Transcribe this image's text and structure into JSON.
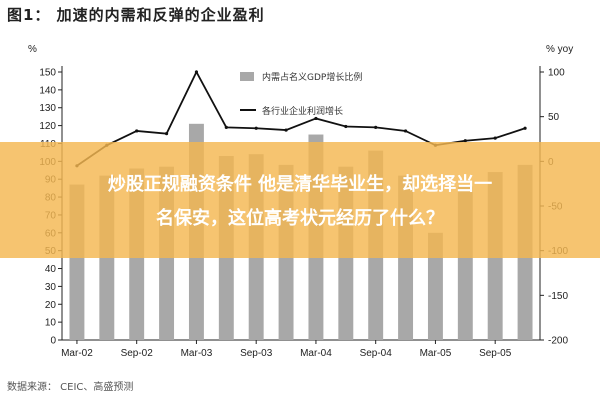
{
  "title": "图1： 加速的内需和反弹的企业盈利",
  "source": "数据来源： CEIC、高盛预测",
  "overlay": {
    "line1": "炒股正规融资条件 他是清华毕业生，却选择当一",
    "line2": "名保安，这位高考状元经历了什么？"
  },
  "chart_data": {
    "type": "bar",
    "left_axis_label": "%",
    "right_axis_label": "% yoy",
    "left_ylim": [
      0,
      150
    ],
    "left_ticks": [
      0,
      10,
      20,
      30,
      40,
      50,
      60,
      70,
      80,
      90,
      100,
      110,
      120,
      130,
      140,
      150
    ],
    "right_ylim": [
      -200,
      100
    ],
    "right_ticks": [
      -200,
      -150,
      -100,
      -50,
      0,
      50,
      100
    ],
    "x_tick_labels": [
      "Mar-02",
      "Sep-02",
      "Mar-03",
      "Sep-03",
      "Mar-04",
      "Sep-04",
      "Mar-05",
      "Sep-05"
    ],
    "grid": false,
    "legend_position": "top-center",
    "categories": [
      "Mar-02",
      "Jun-02",
      "Sep-02",
      "Dec-02",
      "Mar-03",
      "Jun-03",
      "Sep-03",
      "Dec-03",
      "Mar-04",
      "Jun-04",
      "Sep-04",
      "Dec-04",
      "Mar-05",
      "Jun-05",
      "Sep-05",
      "Dec-05"
    ],
    "series": [
      {
        "name": "内需占名义GDP增长比例",
        "kind": "bar",
        "axis": "left",
        "color": "#a8a8a8",
        "values": [
          87,
          92,
          96,
          97,
          121,
          103,
          104,
          98,
          115,
          97,
          106,
          92,
          60,
          86,
          94,
          98
        ]
      },
      {
        "name": "各行业企业利润增长",
        "kind": "line",
        "axis": "right",
        "color": "#111111",
        "values": [
          -5,
          18,
          34,
          31,
          100,
          38,
          37,
          35,
          48,
          39,
          38,
          34,
          18,
          23,
          26,
          37
        ]
      }
    ]
  }
}
